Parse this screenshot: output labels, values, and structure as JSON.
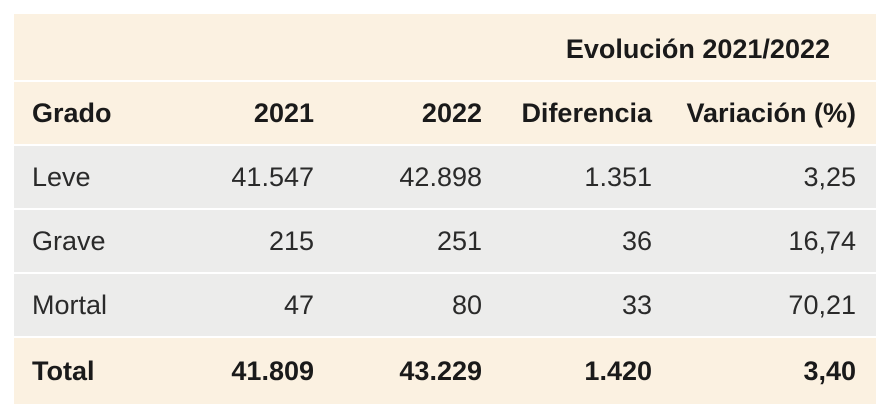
{
  "group_header": "Evolución 2021/2022",
  "columns": [
    "Grado",
    "2021",
    "2022",
    "Diferencia",
    "Variación (%)"
  ],
  "rows": [
    [
      "Leve",
      "41.547",
      "42.898",
      "1.351",
      "3,25"
    ],
    [
      "Grave",
      "215",
      "251",
      "36",
      "16,74"
    ],
    [
      "Mortal",
      "47",
      "80",
      "33",
      "70,21"
    ]
  ],
  "total": [
    "Total",
    "41.809",
    "43.229",
    "1.420",
    "3,40"
  ],
  "colors": {
    "header_bg": "#fbf1e1",
    "body_bg": "#ececeb",
    "divider": "#ffffff"
  }
}
